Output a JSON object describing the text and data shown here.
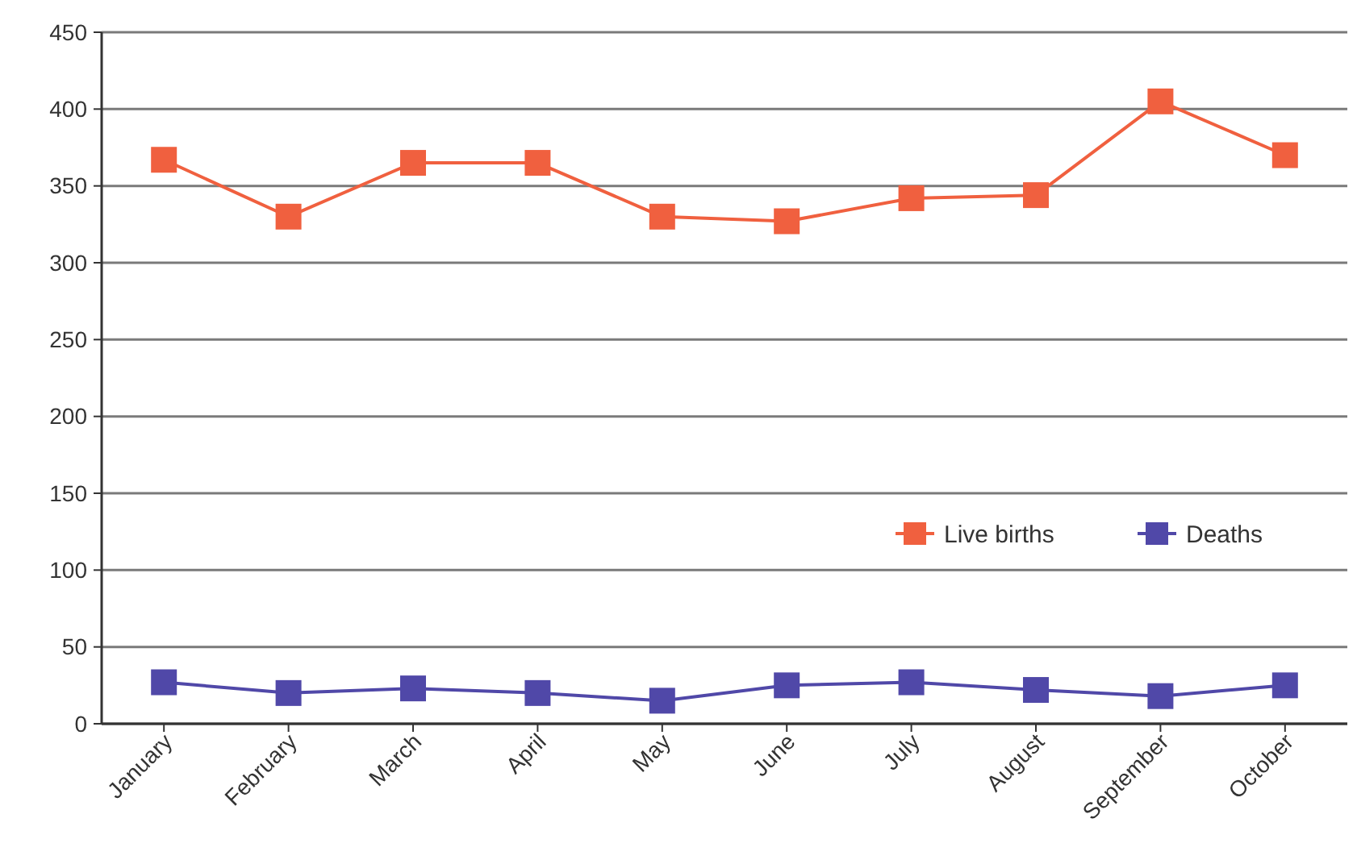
{
  "chart_data": {
    "type": "line",
    "categories": [
      "January",
      "February",
      "March",
      "April",
      "May",
      "June",
      "July",
      "August",
      "September",
      "October"
    ],
    "series": [
      {
        "name": "Live births",
        "color": "#f0603f",
        "values": [
          367,
          330,
          365,
          365,
          330,
          327,
          342,
          344,
          405,
          370
        ]
      },
      {
        "name": "Deaths",
        "color": "#5048a8",
        "values": [
          27,
          20,
          23,
          20,
          15,
          25,
          27,
          22,
          18,
          25
        ]
      }
    ],
    "ylim": [
      0,
      450
    ],
    "yticks": [
      0,
      50,
      100,
      150,
      200,
      250,
      300,
      350,
      400,
      450
    ],
    "grid": "y",
    "legend": "right",
    "marker": "square",
    "line_style": "solid"
  }
}
